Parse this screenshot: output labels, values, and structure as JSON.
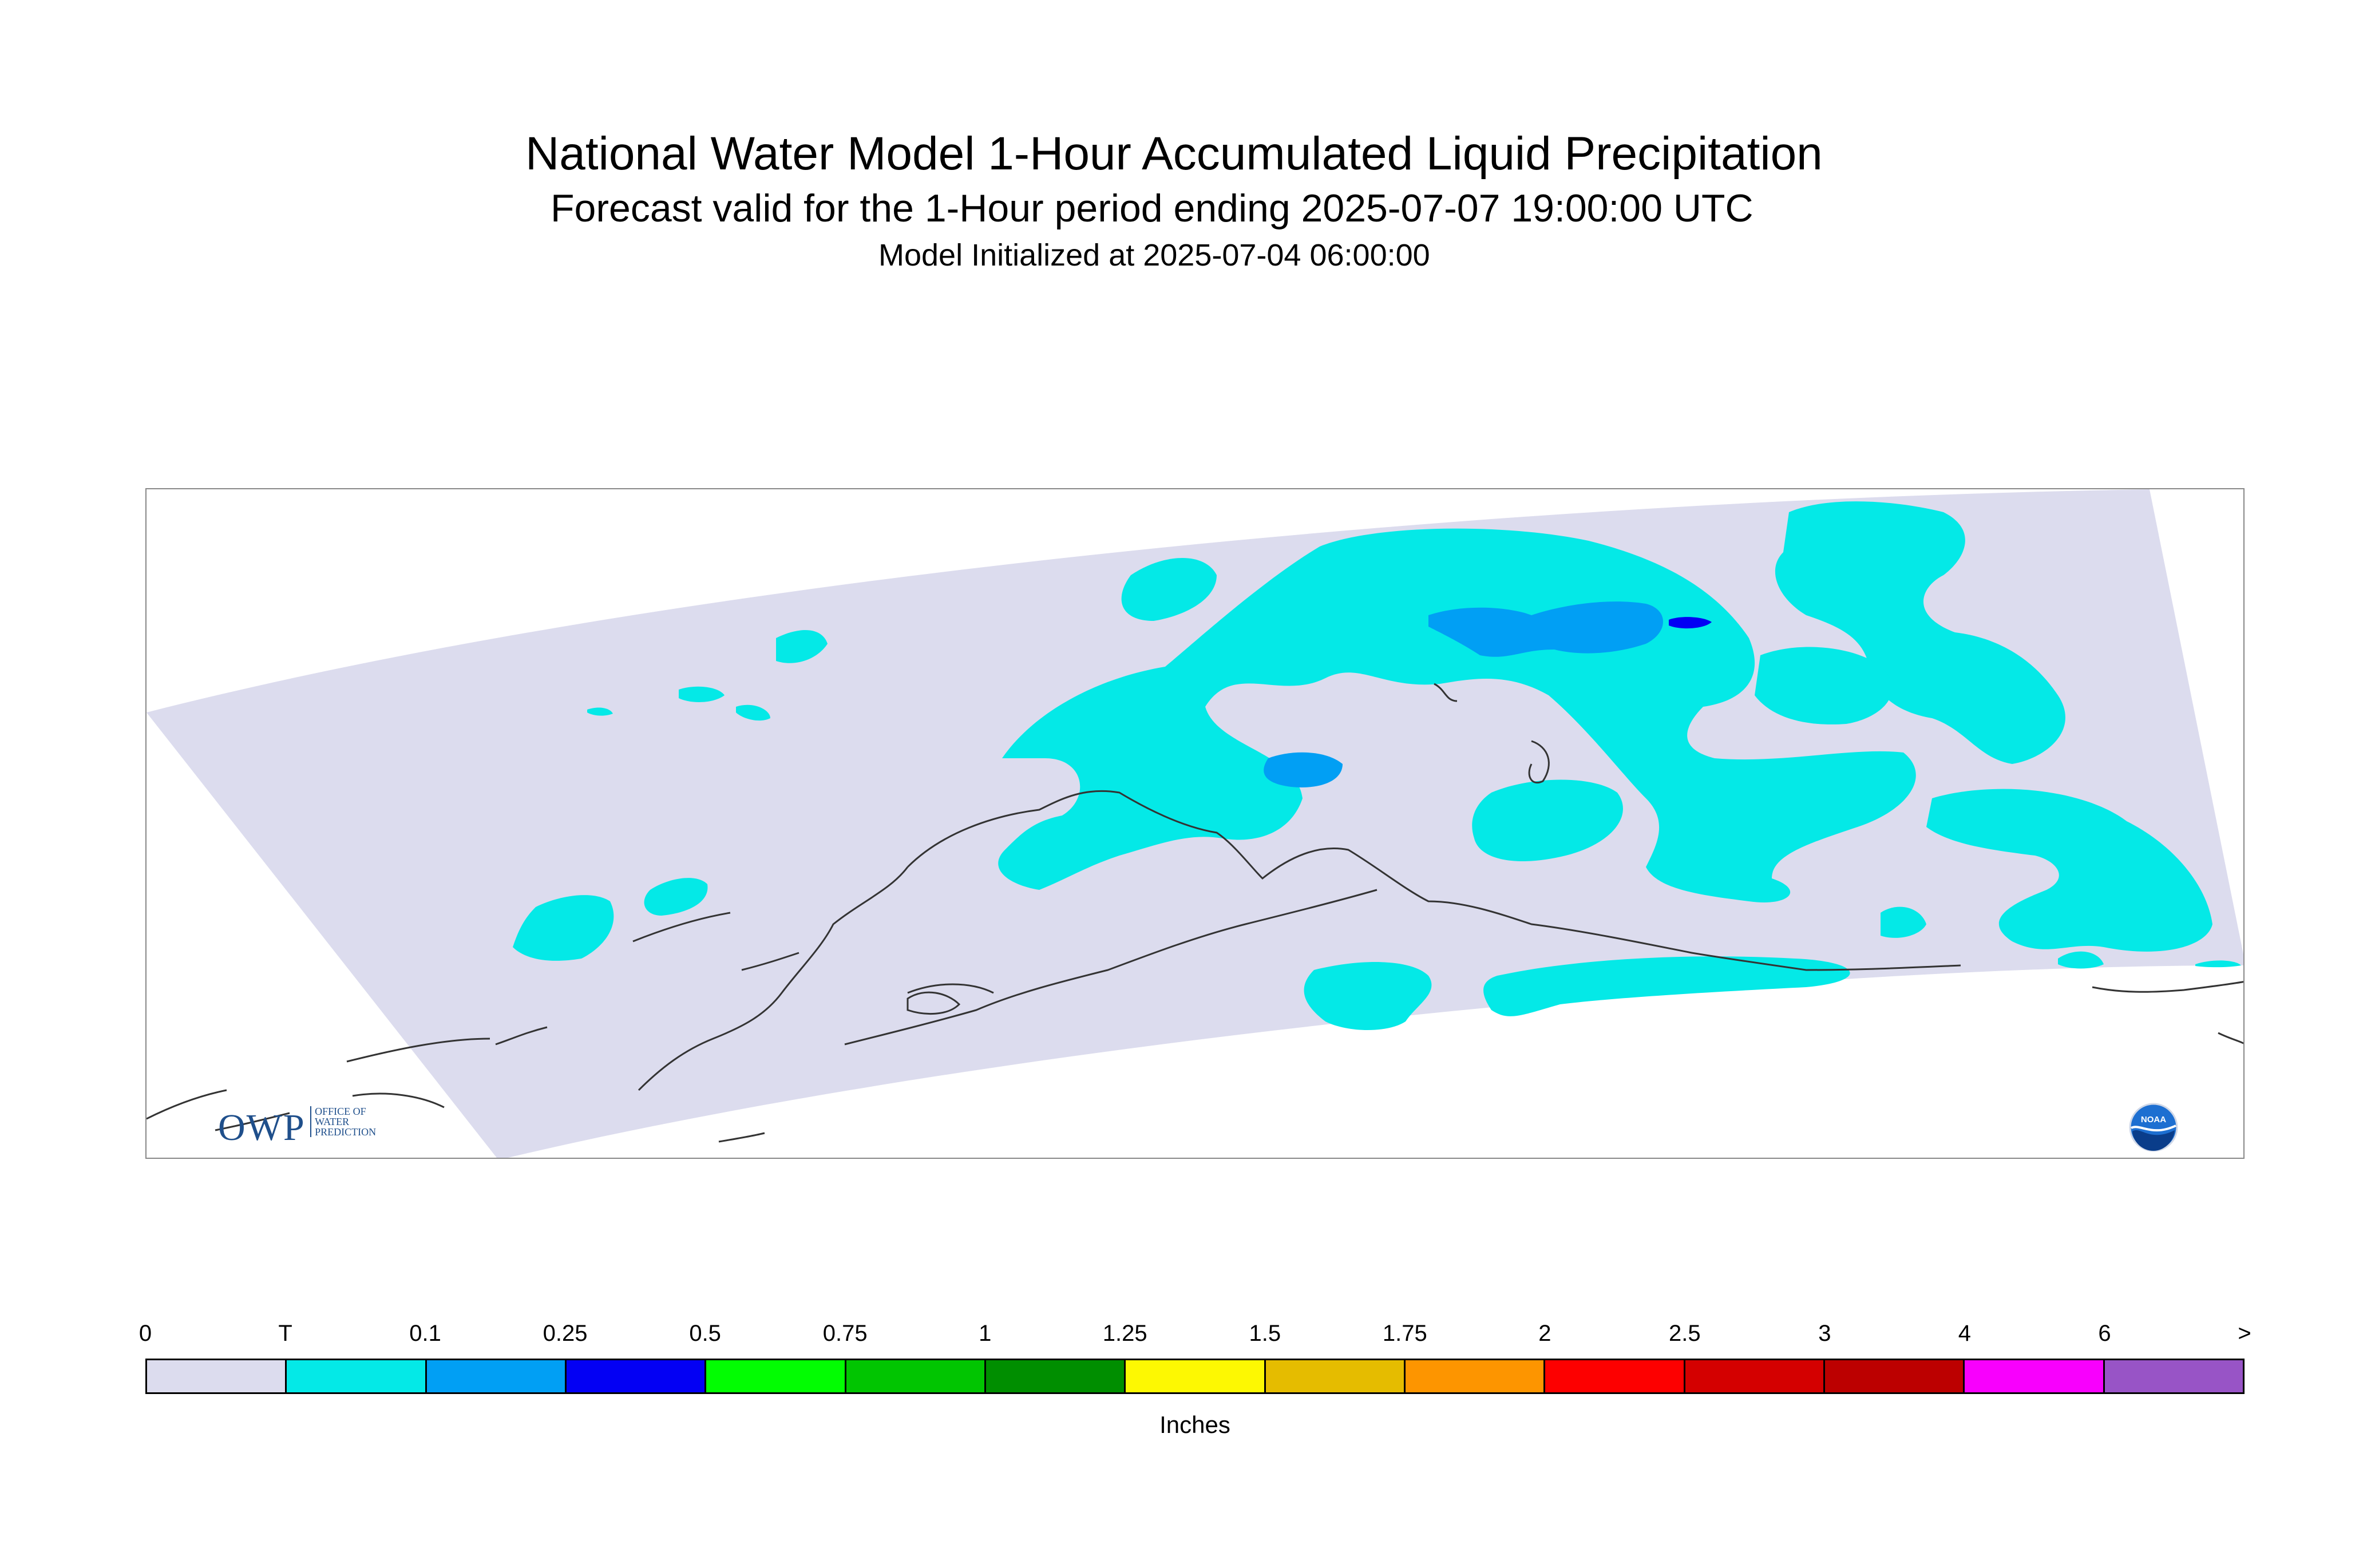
{
  "header": {
    "title": "National Water Model 1-Hour Accumulated Liquid Precipitation",
    "subtitle": "Forecast valid for the 1-Hour period ending 2025-07-07 19:00:00 UTC",
    "init_line": "Model Initialized at 2025-07-04 06:00:00"
  },
  "logos": {
    "owp_letters": "OWP",
    "owp_text": [
      "OFFICE OF",
      "WATER",
      "PREDICTION"
    ],
    "noaa_text": "NOAA"
  },
  "legend": {
    "unit": "Inches",
    "tick_labels": [
      "0",
      "T",
      "0.1",
      "0.25",
      "0.5",
      "0.75",
      "1",
      "1.25",
      "1.5",
      "1.75",
      "2",
      "2.5",
      "3",
      "4",
      "6",
      ">"
    ],
    "colors": [
      "#dcdcee",
      "#04e9e7",
      "#019ff4",
      "#0300f4",
      "#02fd02",
      "#01c501",
      "#008e00",
      "#fdf802",
      "#e5bc00",
      "#fd9500",
      "#fd0000",
      "#d40000",
      "#bc0000",
      "#f800fd",
      "#9854c6"
    ]
  },
  "map": {
    "background_color": "#ffffff",
    "domain_color": "#dcdcee",
    "coastline_color": "#333333"
  }
}
